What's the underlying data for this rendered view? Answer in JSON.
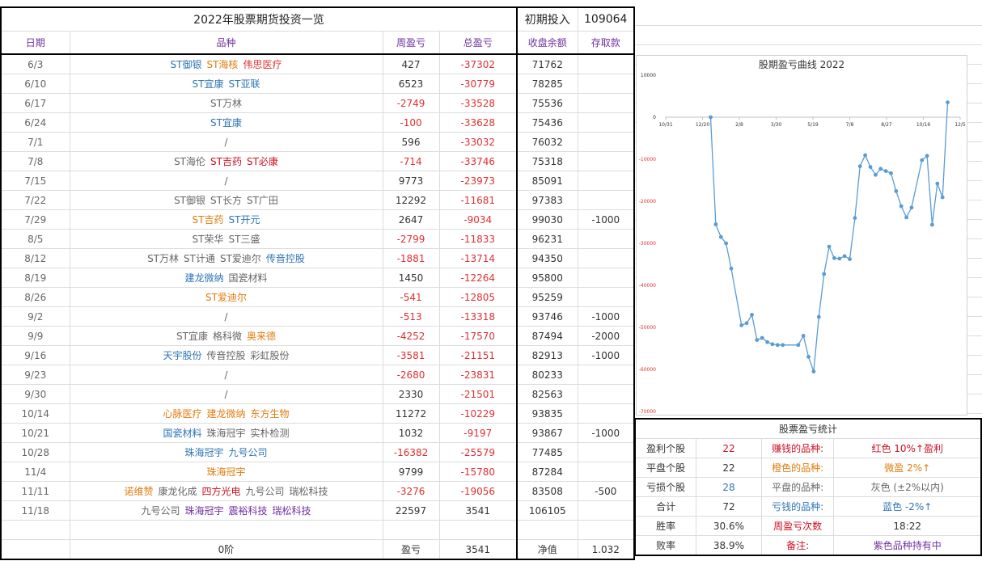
{
  "table": {
    "title": "2022年股票期货投资一览",
    "initial_label": "初期投入",
    "initial_value": "109064",
    "headers": [
      "日期",
      "品种",
      "周盈亏",
      "总盈亏",
      "收盘余额",
      "存取款"
    ],
    "rows": [
      {
        "date": "6/3",
        "items": [
          {
            "t": "ST御银",
            "c": "blue"
          },
          {
            "t": "ST海核",
            "c": "orange"
          },
          {
            "t": "伟思医疗",
            "c": "red"
          }
        ],
        "weekly": "427",
        "total": "-37302",
        "balance": "71762",
        "deposit": ""
      },
      {
        "date": "6/10",
        "items": [
          {
            "t": "ST宜康",
            "c": "blue"
          },
          {
            "t": "ST亚联",
            "c": "blue"
          }
        ],
        "weekly": "6523",
        "total": "-30779",
        "balance": "78285",
        "deposit": ""
      },
      {
        "date": "6/17",
        "items": [
          {
            "t": "ST万林",
            "c": "gray"
          }
        ],
        "weekly": "-2749",
        "total": "-33528",
        "balance": "75536",
        "deposit": ""
      },
      {
        "date": "6/24",
        "items": [
          {
            "t": "ST宜康",
            "c": "blue"
          }
        ],
        "weekly": "-100",
        "total": "-33628",
        "balance": "75436",
        "deposit": ""
      },
      {
        "date": "7/1",
        "items": [
          {
            "t": "/",
            "c": "gray"
          }
        ],
        "weekly": "596",
        "total": "-33032",
        "balance": "76032",
        "deposit": ""
      },
      {
        "date": "7/8",
        "items": [
          {
            "t": "ST海伦",
            "c": "gray"
          },
          {
            "t": "ST吉药",
            "c": "crimson"
          },
          {
            "t": "ST必康",
            "c": "crimson"
          }
        ],
        "weekly": "-714",
        "total": "-33746",
        "balance": "75318",
        "deposit": ""
      },
      {
        "date": "7/15",
        "items": [
          {
            "t": "/",
            "c": "gray"
          }
        ],
        "weekly": "9773",
        "total": "-23973",
        "balance": "85091",
        "deposit": ""
      },
      {
        "date": "7/22",
        "items": [
          {
            "t": "ST御银",
            "c": "gray"
          },
          {
            "t": "ST长方",
            "c": "gray"
          },
          {
            "t": "ST广田",
            "c": "gray"
          }
        ],
        "weekly": "12292",
        "total": "-11681",
        "balance": "97383",
        "deposit": ""
      },
      {
        "date": "7/29",
        "items": [
          {
            "t": "ST吉药",
            "c": "orange"
          },
          {
            "t": "ST开元",
            "c": "blue"
          }
        ],
        "weekly": "2647",
        "total": "-9034",
        "balance": "99030",
        "deposit": "-1000"
      },
      {
        "date": "8/5",
        "items": [
          {
            "t": "ST荣华",
            "c": "gray"
          },
          {
            "t": "ST三盛",
            "c": "gray"
          }
        ],
        "weekly": "-2799",
        "total": "-11833",
        "balance": "96231",
        "deposit": ""
      },
      {
        "date": "8/12",
        "items": [
          {
            "t": "ST万林",
            "c": "gray"
          },
          {
            "t": "ST计通",
            "c": "gray"
          },
          {
            "t": "ST爱迪尔",
            "c": "gray"
          },
          {
            "t": "传音控股",
            "c": "blue"
          }
        ],
        "weekly": "-1881",
        "total": "-13714",
        "balance": "94350",
        "deposit": ""
      },
      {
        "date": "8/19",
        "items": [
          {
            "t": "建龙微纳",
            "c": "blue"
          },
          {
            "t": "国瓷材料",
            "c": "gray"
          }
        ],
        "weekly": "1450",
        "total": "-12264",
        "balance": "95800",
        "deposit": ""
      },
      {
        "date": "8/26",
        "items": [
          {
            "t": "ST爱迪尔",
            "c": "orange"
          }
        ],
        "weekly": "-541",
        "total": "-12805",
        "balance": "95259",
        "deposit": ""
      },
      {
        "date": "9/2",
        "items": [
          {
            "t": "/",
            "c": "gray"
          }
        ],
        "weekly": "-513",
        "total": "-13318",
        "balance": "93746",
        "deposit": "-1000"
      },
      {
        "date": "9/9",
        "items": [
          {
            "t": "ST宜康",
            "c": "gray"
          },
          {
            "t": "格科微",
            "c": "gray"
          },
          {
            "t": "奥来德",
            "c": "orange"
          }
        ],
        "weekly": "-4252",
        "total": "-17570",
        "balance": "87494",
        "deposit": "-2000"
      },
      {
        "date": "9/16",
        "items": [
          {
            "t": "天宇股份",
            "c": "blue"
          },
          {
            "t": "传音控股",
            "c": "gray"
          },
          {
            "t": "彩虹股份",
            "c": "gray"
          }
        ],
        "weekly": "-3581",
        "total": "-21151",
        "balance": "82913",
        "deposit": "-1000"
      },
      {
        "date": "9/23",
        "items": [
          {
            "t": "/",
            "c": "gray"
          }
        ],
        "weekly": "-2680",
        "total": "-23831",
        "balance": "80233",
        "deposit": ""
      },
      {
        "date": "9/30",
        "items": [
          {
            "t": "/",
            "c": "gray"
          }
        ],
        "weekly": "2330",
        "total": "-21501",
        "balance": "82563",
        "deposit": ""
      },
      {
        "date": "10/14",
        "items": [
          {
            "t": "心脉医疗",
            "c": "orange"
          },
          {
            "t": "建龙微纳",
            "c": "orange"
          },
          {
            "t": "东方生物",
            "c": "orange"
          }
        ],
        "weekly": "11272",
        "total": "-10229",
        "balance": "93835",
        "deposit": ""
      },
      {
        "date": "10/21",
        "items": [
          {
            "t": "国瓷材料",
            "c": "blue"
          },
          {
            "t": "珠海冠宇",
            "c": "gray"
          },
          {
            "t": "实朴检测",
            "c": "gray"
          }
        ],
        "weekly": "1032",
        "total": "-9197",
        "balance": "93867",
        "deposit": "-1000"
      },
      {
        "date": "10/28",
        "items": [
          {
            "t": "珠海冠宇",
            "c": "blue"
          },
          {
            "t": "九号公司",
            "c": "blue"
          }
        ],
        "weekly": "-16382",
        "total": "-25579",
        "balance": "77485",
        "deposit": ""
      },
      {
        "date": "11/4",
        "items": [
          {
            "t": "珠海冠宇",
            "c": "orange"
          }
        ],
        "weekly": "9799",
        "total": "-15780",
        "balance": "87284",
        "deposit": ""
      },
      {
        "date": "11/11",
        "items": [
          {
            "t": "诺维赞",
            "c": "orange"
          },
          {
            "t": "康龙化成",
            "c": "gray"
          },
          {
            "t": "四方光电",
            "c": "crimson"
          },
          {
            "t": "九号公司",
            "c": "gray"
          },
          {
            "t": "瑞松科技",
            "c": "gray"
          }
        ],
        "weekly": "-3276",
        "total": "-19056",
        "balance": "83508",
        "deposit": "-500"
      },
      {
        "date": "11/18",
        "items": [
          {
            "t": "九号公司",
            "c": "gray"
          },
          {
            "t": "珠海冠宇",
            "c": "purple"
          },
          {
            "t": "震裕科技",
            "c": "purple"
          },
          {
            "t": "瑞松科技",
            "c": "purple"
          }
        ],
        "weekly": "22597",
        "total": "3541",
        "balance": "106105",
        "deposit": ""
      }
    ],
    "footer": {
      "label": "0阶",
      "profit_label": "盈亏",
      "profit_value": "3541",
      "nav_label": "净值",
      "nav_value": "1.032"
    }
  },
  "stats": {
    "title": "股票盈亏统计",
    "rows": [
      {
        "label": "盈利个股",
        "value": "22",
        "vcolor": "crimson",
        "k": "赚钱的品种:",
        "kcolor": "crimson",
        "d": "红色 10%↑盈利",
        "dcolor": "crimson"
      },
      {
        "label": "平盘个股",
        "value": "22",
        "vcolor": "dark",
        "k": "橙色的品种:",
        "kcolor": "orange",
        "d": "微盈 2%↑",
        "dcolor": "orange"
      },
      {
        "label": "亏损个股",
        "value": "28",
        "vcolor": "blue",
        "k": "平盘的品种:",
        "kcolor": "gray",
        "d": "灰色 (±2%以内)",
        "dcolor": "gray"
      },
      {
        "label": "合计",
        "value": "72",
        "vcolor": "dark",
        "k": "亏钱的品种:",
        "kcolor": "blue",
        "d": "蓝色 -2%↑",
        "dcolor": "blue"
      },
      {
        "label": "胜率",
        "value": "30.6%",
        "vcolor": "dark",
        "k": "周盈亏次数",
        "kcolor": "crimson",
        "d": "18:22",
        "dcolor": "dark"
      },
      {
        "label": "败率",
        "value": "38.9%",
        "vcolor": "dark",
        "k": "备注:",
        "kcolor": "crimson",
        "d": "紫色品种持有中",
        "dcolor": "purple"
      }
    ]
  },
  "chart_data": {
    "type": "line",
    "title": "股期盈亏曲线 2022",
    "x_tick_labels": [
      "10/31",
      "12/20",
      "2/8",
      "3/30",
      "5/19",
      "7/8",
      "8/27",
      "10/16",
      "12/5"
    ],
    "y_tick_labels": [
      "10000",
      "0",
      "-10000",
      "-20000",
      "-30000",
      "-40000",
      "-50000",
      "-60000",
      "-70000"
    ],
    "ylim": [
      -70000,
      10000
    ],
    "color": "#5b9bd5",
    "points": [
      {
        "x": "2021-12-31",
        "y": 0
      },
      {
        "x": "2022-01-07",
        "y": -25500
      },
      {
        "x": "2022-01-14",
        "y": -28500
      },
      {
        "x": "2022-01-21",
        "y": -30000
      },
      {
        "x": "2022-01-28",
        "y": -36000
      },
      {
        "x": "2022-02-11",
        "y": -49500
      },
      {
        "x": "2022-02-18",
        "y": -49000
      },
      {
        "x": "2022-02-25",
        "y": -47000
      },
      {
        "x": "2022-03-04",
        "y": -53000
      },
      {
        "x": "2022-03-11",
        "y": -52500
      },
      {
        "x": "2022-03-18",
        "y": -53500
      },
      {
        "x": "2022-03-25",
        "y": -54000
      },
      {
        "x": "2022-04-01",
        "y": -54200
      },
      {
        "x": "2022-04-08",
        "y": -54200
      },
      {
        "x": "2022-04-29",
        "y": -54200
      },
      {
        "x": "2022-05-06",
        "y": -52000
      },
      {
        "x": "2022-05-13",
        "y": -57000
      },
      {
        "x": "2022-05-20",
        "y": -60500
      },
      {
        "x": "2022-05-27",
        "y": -47500
      },
      {
        "x": "2022-06-03",
        "y": -37302
      },
      {
        "x": "2022-06-10",
        "y": -30779
      },
      {
        "x": "2022-06-17",
        "y": -33528
      },
      {
        "x": "2022-06-24",
        "y": -33628
      },
      {
        "x": "2022-07-01",
        "y": -33032
      },
      {
        "x": "2022-07-08",
        "y": -33746
      },
      {
        "x": "2022-07-15",
        "y": -23973
      },
      {
        "x": "2022-07-22",
        "y": -11681
      },
      {
        "x": "2022-07-29",
        "y": -9034
      },
      {
        "x": "2022-08-05",
        "y": -11833
      },
      {
        "x": "2022-08-12",
        "y": -13714
      },
      {
        "x": "2022-08-19",
        "y": -12264
      },
      {
        "x": "2022-08-26",
        "y": -12805
      },
      {
        "x": "2022-09-02",
        "y": -13318
      },
      {
        "x": "2022-09-09",
        "y": -17570
      },
      {
        "x": "2022-09-16",
        "y": -21151
      },
      {
        "x": "2022-09-23",
        "y": -23831
      },
      {
        "x": "2022-09-30",
        "y": -21501
      },
      {
        "x": "2022-10-14",
        "y": -10229
      },
      {
        "x": "2022-10-21",
        "y": -9197
      },
      {
        "x": "2022-10-28",
        "y": -25579
      },
      {
        "x": "2022-11-04",
        "y": -15780
      },
      {
        "x": "2022-11-11",
        "y": -19056
      },
      {
        "x": "2022-11-18",
        "y": 3541
      }
    ]
  }
}
